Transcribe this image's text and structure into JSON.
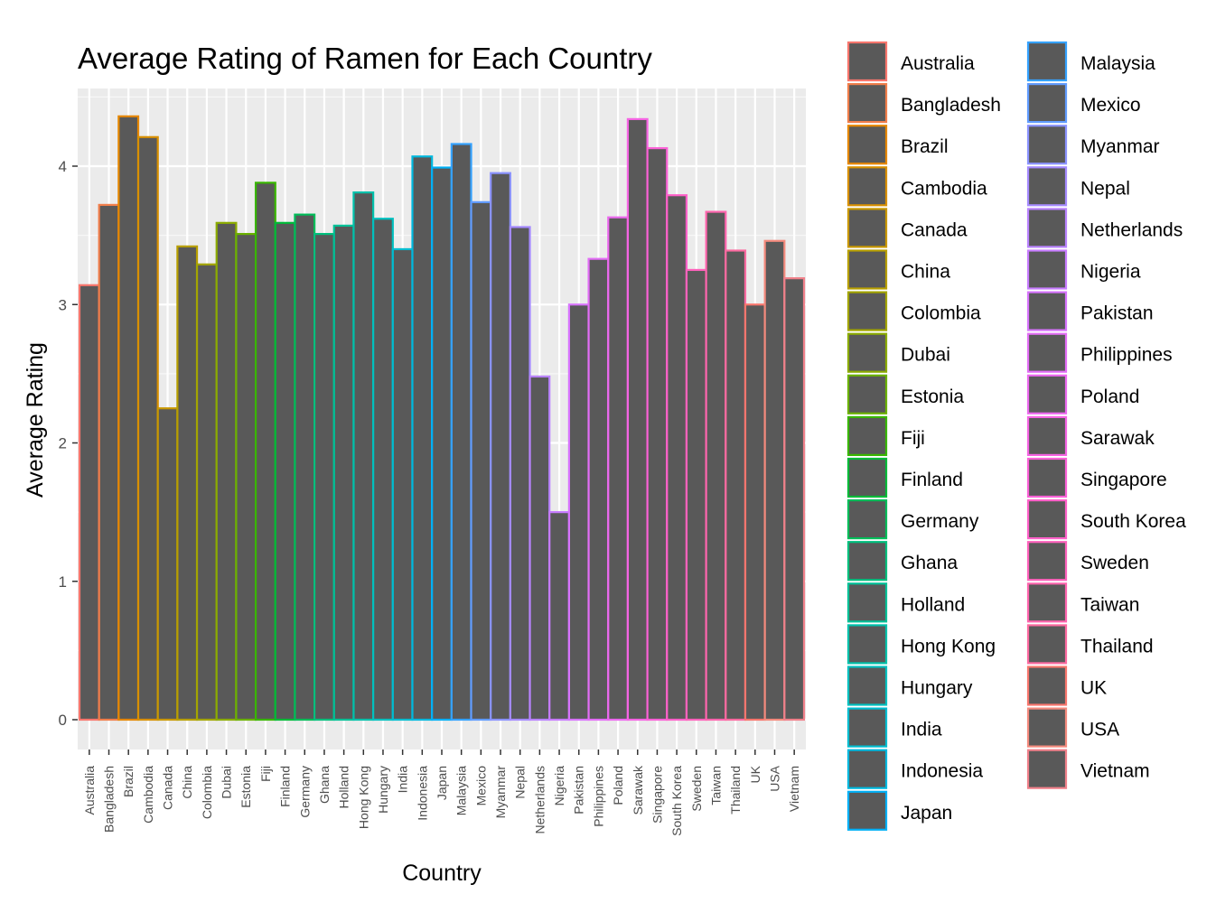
{
  "chart_data": {
    "type": "bar",
    "title": "Average Rating of Ramen for Each Country",
    "xlabel": "Country",
    "ylabel": "Average Rating",
    "ylim": [
      0,
      4.5
    ],
    "y_ticks": [
      "0",
      "1",
      "2",
      "3",
      "4"
    ],
    "grid": true,
    "legend_position": "right",
    "bar_fill": "#595959",
    "panel_background": "#ebebeb",
    "categories": [
      "Australia",
      "Bangladesh",
      "Brazil",
      "Cambodia",
      "Canada",
      "China",
      "Colombia",
      "Dubai",
      "Estonia",
      "Fiji",
      "Finland",
      "Germany",
      "Ghana",
      "Holland",
      "Hong Kong",
      "Hungary",
      "India",
      "Indonesia",
      "Japan",
      "Malaysia",
      "Mexico",
      "Myanmar",
      "Nepal",
      "Netherlands",
      "Nigeria",
      "Pakistan",
      "Philippines",
      "Poland",
      "Sarawak",
      "Singapore",
      "South Korea",
      "Sweden",
      "Taiwan",
      "Thailand",
      "UK",
      "USA",
      "Vietnam"
    ],
    "values": [
      3.14,
      3.72,
      4.36,
      4.21,
      2.25,
      3.42,
      3.29,
      3.59,
      3.51,
      3.88,
      3.59,
      3.65,
      3.51,
      3.57,
      3.81,
      3.62,
      3.4,
      4.07,
      3.99,
      4.16,
      3.74,
      3.95,
      3.56,
      2.48,
      1.5,
      3.0,
      3.33,
      3.63,
      4.34,
      4.13,
      3.79,
      3.25,
      3.67,
      3.39,
      3.0,
      3.46,
      3.19
    ],
    "outline_colors": [
      "#F8766D",
      "#F07E4B",
      "#E58700",
      "#D89000",
      "#C99800",
      "#B79F00",
      "#A3A500",
      "#8BAB00",
      "#6BB100",
      "#39B600",
      "#00BA38",
      "#00BC59",
      "#00BF7D",
      "#00C097",
      "#00C1AB",
      "#00C0BF",
      "#00BDD0",
      "#00B8DE",
      "#00B0F6",
      "#35A2FF",
      "#619CFF",
      "#8B93FF",
      "#A58AFF",
      "#B983FF",
      "#C77CFF",
      "#D774FD",
      "#E36EF6",
      "#EC69EF",
      "#F564E3",
      "#FB61D7",
      "#FF61C9",
      "#FF62BC",
      "#FF65AE",
      "#FC6AA0",
      "#F8766D",
      "#F48A7D",
      "#F0808A"
    ]
  }
}
